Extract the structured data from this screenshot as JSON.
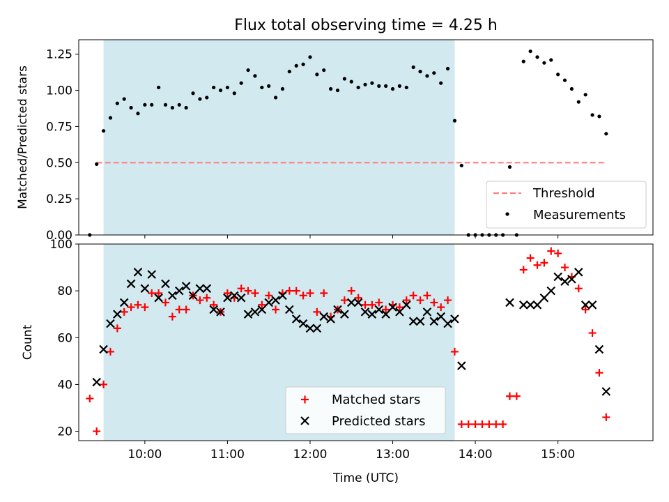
{
  "chart_data": {
    "type": "scatter",
    "title": "Flux total observing time = 4.25 h",
    "xlabel": "Time (UTC)",
    "xlim": [
      "09:12",
      "16:09"
    ],
    "xticks": [
      "10:00",
      "11:00",
      "12:00",
      "13:00",
      "14:00",
      "15:00"
    ],
    "shaded_interval": {
      "start": "09:30",
      "end": "13:45",
      "color": "#d2e9f0"
    },
    "panels": [
      {
        "name": "ratio",
        "ylabel": "Matched/Predicted stars",
        "ylim": [
          0,
          1.35
        ],
        "yticks": [
          "0.00",
          "0.25",
          "0.50",
          "0.75",
          "1.00",
          "1.25"
        ],
        "legend_position": "lower-right",
        "threshold": {
          "name": "Threshold",
          "value": 0.5,
          "x_start": "09:25",
          "x_end": "15:35",
          "color": "#ff7f7f"
        },
        "series": [
          {
            "name": "Measurements",
            "color": "#000000",
            "marker": "dot",
            "x": [
              "09:20",
              "09:25",
              "09:30",
              "09:35",
              "09:40",
              "09:45",
              "09:50",
              "09:55",
              "10:00",
              "10:05",
              "10:10",
              "10:15",
              "10:20",
              "10:25",
              "10:30",
              "10:35",
              "10:40",
              "10:45",
              "10:50",
              "10:55",
              "11:00",
              "11:05",
              "11:10",
              "11:15",
              "11:20",
              "11:25",
              "11:30",
              "11:35",
              "11:40",
              "11:45",
              "11:50",
              "11:55",
              "12:00",
              "12:05",
              "12:10",
              "12:15",
              "12:20",
              "12:25",
              "12:30",
              "12:35",
              "12:40",
              "12:45",
              "12:50",
              "12:55",
              "13:00",
              "13:05",
              "13:10",
              "13:15",
              "13:20",
              "13:25",
              "13:30",
              "13:35",
              "13:40",
              "13:45",
              "13:50",
              "13:55",
              "14:00",
              "14:05",
              "14:10",
              "14:15",
              "14:20",
              "14:25",
              "14:30",
              "14:35",
              "14:40",
              "14:45",
              "14:50",
              "14:55",
              "15:00",
              "15:05",
              "15:10",
              "15:15",
              "15:20",
              "15:25",
              "15:30",
              "15:35"
            ],
            "y": [
              0.0,
              0.49,
              0.72,
              0.81,
              0.91,
              0.94,
              0.88,
              0.84,
              0.9,
              0.9,
              1.02,
              0.9,
              0.88,
              0.9,
              0.88,
              0.98,
              0.94,
              0.95,
              1.02,
              1.0,
              1.02,
              0.98,
              1.05,
              1.14,
              1.1,
              1.02,
              1.03,
              0.95,
              1.01,
              1.13,
              1.17,
              1.18,
              1.23,
              1.11,
              1.14,
              1.01,
              1.0,
              1.08,
              1.06,
              1.02,
              1.04,
              1.05,
              1.03,
              1.03,
              1.01,
              1.03,
              1.02,
              1.16,
              1.13,
              1.1,
              1.12,
              1.05,
              1.15,
              0.79,
              0.48,
              0.0,
              0.0,
              0.0,
              0.0,
              0.0,
              0.0,
              0.47,
              0.0,
              1.2,
              1.27,
              1.23,
              1.19,
              1.21,
              1.11,
              1.07,
              1.01,
              0.92,
              0.97,
              0.83,
              0.82,
              0.7
            ]
          }
        ]
      },
      {
        "name": "count",
        "ylabel": "Count",
        "ylim": [
          16,
          100
        ],
        "yticks": [
          "20",
          "40",
          "60",
          "80",
          "100"
        ],
        "legend_position": "lower-center",
        "x": [
          "09:20",
          "09:25",
          "09:30",
          "09:35",
          "09:40",
          "09:45",
          "09:50",
          "09:55",
          "10:00",
          "10:05",
          "10:10",
          "10:15",
          "10:20",
          "10:25",
          "10:30",
          "10:35",
          "10:40",
          "10:45",
          "10:50",
          "10:55",
          "11:00",
          "11:05",
          "11:10",
          "11:15",
          "11:20",
          "11:25",
          "11:30",
          "11:35",
          "11:40",
          "11:45",
          "11:50",
          "11:55",
          "12:00",
          "12:05",
          "12:10",
          "12:15",
          "12:20",
          "12:25",
          "12:30",
          "12:35",
          "12:40",
          "12:45",
          "12:50",
          "12:55",
          "13:00",
          "13:05",
          "13:10",
          "13:15",
          "13:20",
          "13:25",
          "13:30",
          "13:35",
          "13:40",
          "13:45",
          "13:50",
          "13:55",
          "14:00",
          "14:05",
          "14:10",
          "14:15",
          "14:20",
          "14:25",
          "14:30",
          "14:35",
          "14:40",
          "14:45",
          "14:50",
          "14:55",
          "15:00",
          "15:05",
          "15:10",
          "15:15",
          "15:20",
          "15:25",
          "15:30",
          "15:35"
        ],
        "series": [
          {
            "name": "Matched stars",
            "color": "#ff0000",
            "marker": "plus",
            "y": [
              34,
              20,
              40,
              54,
              64,
              71,
              73,
              74,
              73,
              79,
              79,
              75,
              69,
              72,
              72,
              78,
              76,
              77,
              74,
              71,
              79,
              77,
              81,
              80,
              79,
              74,
              78,
              72,
              79,
              80,
              80,
              78,
              79,
              71,
              79,
              69,
              72,
              76,
              80,
              77,
              74,
              74,
              75,
              72,
              74,
              73,
              76,
              78,
              76,
              78,
              75,
              73,
              76,
              54,
              23,
              23,
              23,
              23,
              23,
              23,
              23,
              35,
              35,
              89,
              94,
              91,
              92,
              97,
              96,
              90,
              86,
              81,
              72,
              62,
              45,
              26
            ]
          },
          {
            "name": "Predicted stars",
            "color": "#000000",
            "marker": "x",
            "y": [
              null,
              41,
              55,
              66,
              70,
              75,
              83,
              88,
              81,
              87,
              77,
              83,
              78,
              80,
              82,
              78,
              81,
              81,
              72,
              71,
              77,
              78,
              77,
              70,
              71,
              72,
              75,
              76,
              78,
              72,
              68,
              66,
              64,
              64,
              69,
              68,
              72,
              70,
              75,
              75,
              71,
              70,
              72,
              70,
              73,
              71,
              74,
              67,
              67,
              71,
              67,
              69,
              66,
              68,
              48,
              null,
              null,
              null,
              null,
              null,
              null,
              75,
              null,
              74,
              74,
              74,
              77,
              80,
              86,
              84,
              85,
              88,
              74,
              74,
              55,
              37
            ]
          }
        ]
      }
    ]
  }
}
